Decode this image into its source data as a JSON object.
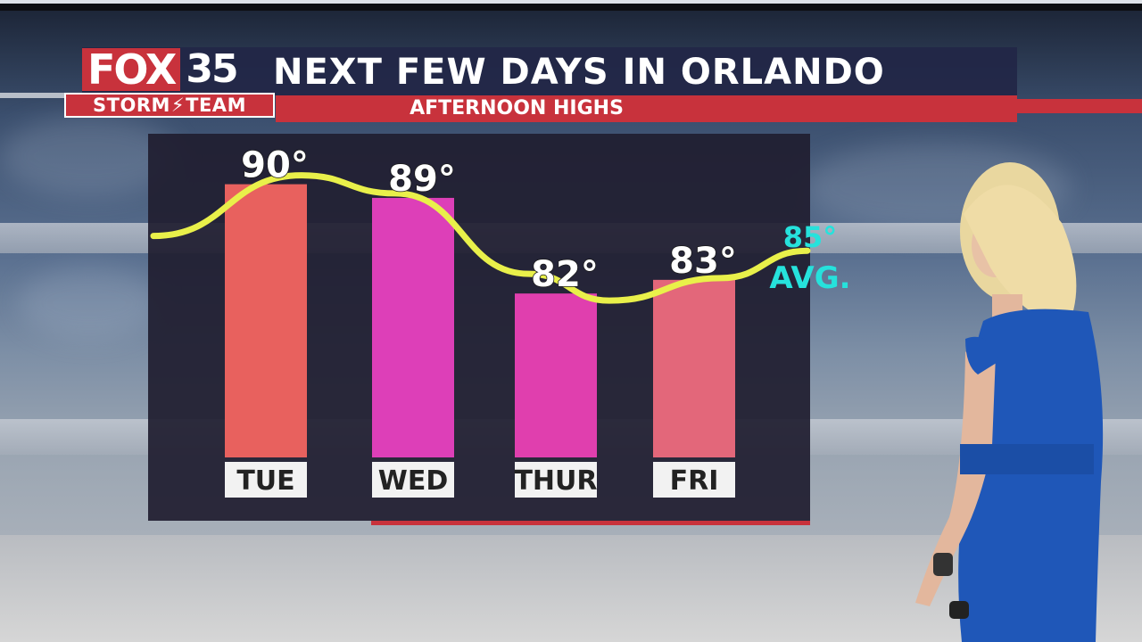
{
  "header": {
    "brand": "FOX",
    "channel": "35",
    "team_left": "STORM",
    "team_right": "TEAM",
    "title": "NEXT FEW DAYS IN ORLANDO",
    "subtitle": "AFTERNOON HIGHS"
  },
  "colors": {
    "brand_red": "#c8323c",
    "header_navy": "#222646",
    "curve_yellow": "#e9f04a",
    "avg_cyan": "#26e2dc"
  },
  "chart_data": {
    "type": "bar",
    "categories": [
      "TUE",
      "WED",
      "THUR",
      "FRI"
    ],
    "values": [
      90,
      89,
      82,
      83
    ],
    "value_labels": [
      "90°",
      "89°",
      "82°",
      "83°"
    ],
    "bar_colors": [
      "#e8615e",
      "#dd3fb8",
      "#e03fae",
      "#e3677a"
    ],
    "average": {
      "value": 85,
      "label": "85°",
      "text": "AVG."
    },
    "title": "AFTERNOON HIGHS",
    "trend_line": true,
    "ylim": [
      70,
      95
    ]
  }
}
